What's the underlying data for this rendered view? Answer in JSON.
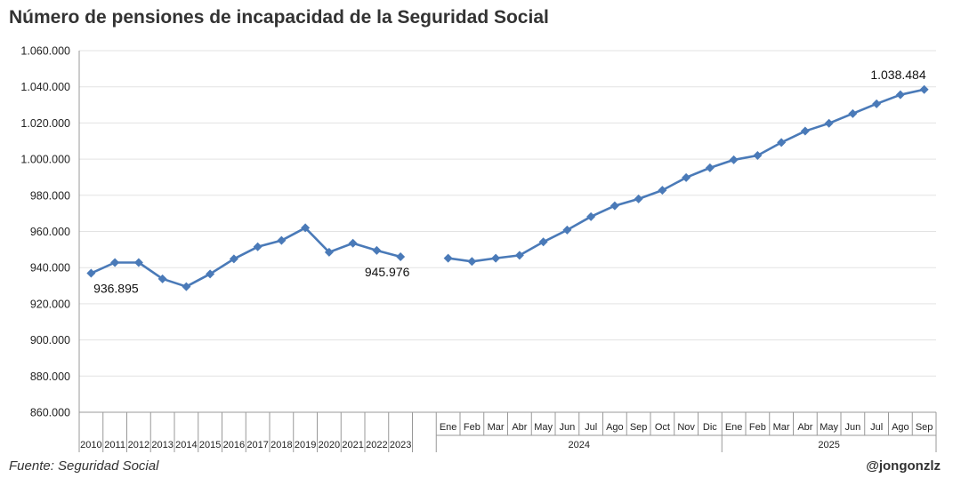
{
  "header": {
    "title": "Número de pensiones de incapacidad de la Seguridad Social"
  },
  "footer": {
    "source": "Fuente: Seguridad Social",
    "credit": "@jongonzlz"
  },
  "colors": {
    "line": "#4a7ab8",
    "grid": "#e3e3e3",
    "axis": "#999999"
  },
  "chart_data": {
    "type": "line",
    "title": "Número de pensiones de incapacidad de la Seguridad Social",
    "ylim": [
      860000,
      1060000
    ],
    "yticks": [
      "860.000",
      "880.000",
      "900.000",
      "920.000",
      "940.000",
      "960.000",
      "980.000",
      "1.000.000",
      "1.020.000",
      "1.040.000",
      "1.060.000"
    ],
    "tick_values": [
      860000,
      880000,
      900000,
      920000,
      940000,
      960000,
      980000,
      1000000,
      1020000,
      1040000,
      1060000
    ],
    "grid": true,
    "categories": [
      "2010",
      "2011",
      "2012",
      "2013",
      "2014",
      "2015",
      "2016",
      "2017",
      "2018",
      "2019",
      "2020",
      "2021",
      "2022",
      "2023",
      "",
      "Ene",
      "Feb",
      "Mar",
      "Abr",
      "May",
      "Jun",
      "Jul",
      "Ago",
      "Sep",
      "Oct",
      "Nov",
      "Dic",
      "Ene",
      "Feb",
      "Mar",
      "Abr",
      "May",
      "Jun",
      "Jul",
      "Ago",
      "Sep"
    ],
    "groups": [
      {
        "label": "2024",
        "start": 15,
        "end": 26
      },
      {
        "label": "2025",
        "start": 27,
        "end": 35
      }
    ],
    "series": [
      {
        "values": [
          936895,
          942800,
          942800,
          933800,
          929500,
          936500,
          944800,
          951500,
          955000,
          962000,
          948500,
          953500,
          949500,
          945976,
          null,
          945200,
          943400,
          945200,
          946800,
          954200,
          960800,
          968200,
          974200,
          978000,
          982800,
          989800,
          995200,
          999600,
          1002000,
          1009200,
          1015500,
          1019800,
          1025200,
          1030600,
          1035600,
          1038484
        ]
      }
    ],
    "annotations": [
      {
        "index": 0,
        "text": "936.895"
      },
      {
        "index": 13,
        "text": "945.976"
      },
      {
        "index": 35,
        "text": "1.038.484"
      }
    ]
  }
}
